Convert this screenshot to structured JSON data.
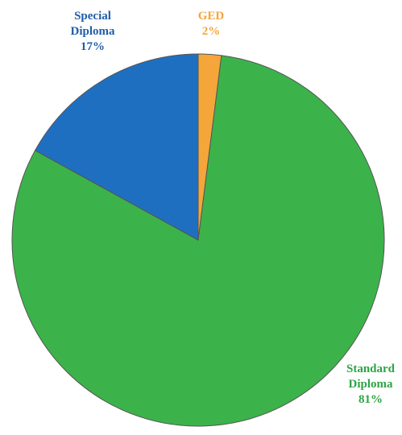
{
  "chart_data": {
    "type": "pie",
    "title": "",
    "slices": [
      {
        "name": "GED",
        "label_lines": [
          "GED"
        ],
        "value": 2,
        "value_label": "2%",
        "color": "#f4a63a"
      },
      {
        "name": "Standard Diploma",
        "label_lines": [
          "Standard",
          "Diploma"
        ],
        "value": 81,
        "value_label": "81%",
        "color": "#3bb34a"
      },
      {
        "name": "Special Diploma",
        "label_lines": [
          "Special",
          "Diploma"
        ],
        "value": 17,
        "value_label": "17%",
        "color": "#1f6fc1"
      }
    ],
    "label_colors": {
      "GED": "#f4a63a",
      "Standard Diploma": "#2ca544",
      "Special Diploma": "#1f5ea8"
    },
    "start_angle": "12 o'clock",
    "direction": "clockwise",
    "legend": "none"
  }
}
